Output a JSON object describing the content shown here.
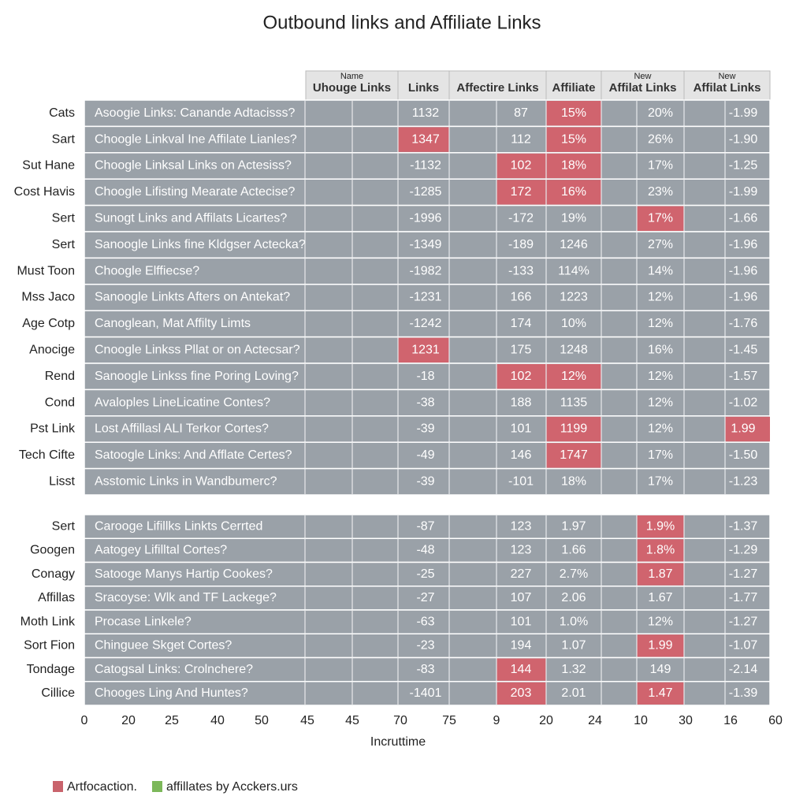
{
  "header": {
    "title": "Outbound links and Affiliate Links"
  },
  "table": {
    "cell_color": "#9aa1a8",
    "highlight_color": "#d0646e",
    "columns": [
      {
        "top": "Name",
        "label": "Uhouge Links"
      },
      {
        "label": "Links"
      },
      {
        "label": "Affectire Links"
      },
      {
        "label": "Affiliate"
      },
      {
        "top": "New",
        "label": "Affilat Links"
      },
      {
        "top": "New",
        "label": "Affilat Links"
      }
    ],
    "groups": [
      {
        "rows": [
          {
            "label": "Cats",
            "cells": [
              "Asoogie Links: Canande Adtacisss?",
              "1132",
              "87",
              "15%",
              "20%",
              "-1.99"
            ],
            "highlight": [
              3
            ]
          },
          {
            "label": "Sart",
            "cells": [
              "Choogle Linkval Ine Affilate Lianles?",
              "1347",
              "112",
              "15%",
              "26%",
              "-1.90"
            ],
            "highlight": [
              1,
              3
            ]
          },
          {
            "label": "Sut Hane",
            "cells": [
              "Choogle Linksal Links on Actesiss?",
              "-1132",
              "102",
              "18%",
              "17%",
              "-1.25"
            ],
            "highlight": [
              2,
              3
            ]
          },
          {
            "label": "Cost Havis",
            "cells": [
              "Choogle Lifisting Mearate Actecise?",
              "-1285",
              "172",
              "16%",
              "23%",
              "-1.99"
            ],
            "highlight": [
              2,
              3
            ]
          },
          {
            "label": "Sert",
            "cells": [
              "Sunogt Links and Affilats Licartes?",
              "-1996",
              "-172",
              "19%",
              "17%",
              "-1.66"
            ],
            "highlight": [
              4
            ]
          },
          {
            "label": "Sert",
            "cells": [
              "Sanoogle Links fine Kldgser Actecka?",
              "-1349",
              "-189",
              "1246",
              "27%",
              "-1.96"
            ],
            "highlight": []
          },
          {
            "label": "Must Toon",
            "cells": [
              "Choogle Elffiecse?",
              "-1982",
              "-133",
              "114%",
              "14%",
              "-1.96"
            ],
            "highlight": []
          },
          {
            "label": "Mss Jaco",
            "cells": [
              "Sanoogle Linkts Afters on Antekat?",
              "-1231",
              "166",
              "1223",
              "12%",
              "-1.96"
            ],
            "highlight": []
          },
          {
            "label": "Age Cotp",
            "cells": [
              "Canoglean, Mat Affilty Limts",
              "-1242",
              "174",
              "10%",
              "12%",
              "-1.76"
            ],
            "highlight": []
          },
          {
            "label": "Anocige",
            "cells": [
              "Cnoogle Linkss Pllat or on Actecsar?",
              "1231",
              "175",
              "1248",
              "16%",
              "-1.45"
            ],
            "highlight": [
              1
            ]
          },
          {
            "label": "Rend",
            "cells": [
              "Sanoogle Linkss fine Poring Loving?",
              "-18",
              "102",
              "12%",
              "12%",
              "-1.57"
            ],
            "highlight": [
              2,
              3
            ]
          },
          {
            "label": "Cond",
            "cells": [
              "Avaloples LineLicatine Contes?",
              "-38",
              "188",
              "1135",
              "12%",
              "-1.02"
            ],
            "highlight": []
          },
          {
            "label": "Pst Link",
            "cells": [
              "Lost Affillasl ALI Terkor Cortes?",
              "-39",
              "101",
              "1199",
              "12%",
              "1.99"
            ],
            "highlight": [
              3,
              5
            ]
          },
          {
            "label": "Tech Cifte",
            "cells": [
              "Satoogle Links: And Afflate Certes?",
              "-49",
              "146",
              "1747",
              "17%",
              "-1.50"
            ],
            "highlight": [
              3
            ]
          },
          {
            "label": "Lisst",
            "cells": [
              "Asstomic Links in Wandbumerc?",
              "-39",
              "-101",
              "18%",
              "17%",
              "-1.23"
            ],
            "highlight": []
          }
        ]
      },
      {
        "rows": [
          {
            "label": "Sert",
            "cells": [
              "Carooge Lifillks Linkts Cerrted",
              "-87",
              "123",
              "1.97",
              "1.9%",
              "-1.37"
            ],
            "highlight": [
              4
            ]
          },
          {
            "label": "Googen",
            "cells": [
              "Aatogey Lifilltal Cortes?",
              "-48",
              "123",
              "1.66",
              "1.8%",
              "-1.29"
            ],
            "highlight": [
              4
            ]
          },
          {
            "label": "Conagy",
            "cells": [
              "Satooge Manys Hartip Cookes?",
              "-25",
              "227",
              "2.7%",
              "1.87",
              "-1.27"
            ],
            "highlight": [
              4
            ]
          },
          {
            "label": "Affillas",
            "cells": [
              "Sracoyse: Wlk and TF Lackege?",
              "-27",
              "107",
              "2.06",
              "1.67",
              "-1.77"
            ],
            "highlight": []
          },
          {
            "label": "Moth Link",
            "cells": [
              "Procase Linkele?",
              "-63",
              "101",
              "1.0%",
              "12%",
              "-1.27"
            ],
            "highlight": []
          },
          {
            "label": "Sort Fion",
            "cells": [
              "Chinguee Skget Cortes?",
              "-23",
              "194",
              "1.07",
              "1.99",
              "-1.07"
            ],
            "highlight": [
              4
            ]
          },
          {
            "label": "Tondage",
            "cells": [
              "Catogsal Links: Crolnchere?",
              "-83",
              "144",
              "1.32",
              "149",
              "-2.14"
            ],
            "highlight": [
              2
            ]
          },
          {
            "label": "Cillice",
            "cells": [
              "Chooges Ling And Huntes?",
              "-1401",
              "203",
              "2.01",
              "1.47",
              "-1.39"
            ],
            "highlight": [
              2,
              4
            ]
          }
        ]
      }
    ]
  },
  "axis": {
    "ticks": [
      "0",
      "20",
      "25",
      "40",
      "50",
      "45",
      "45",
      "70",
      "75",
      "9",
      "20",
      "24",
      "10",
      "30",
      "16",
      "60"
    ],
    "title": "Incruttime"
  },
  "legend": [
    {
      "label": "Artfocaction.",
      "color": "#c9636c"
    },
    {
      "label": "affillates by Acckers.urs",
      "color": "#7cb85a"
    }
  ]
}
